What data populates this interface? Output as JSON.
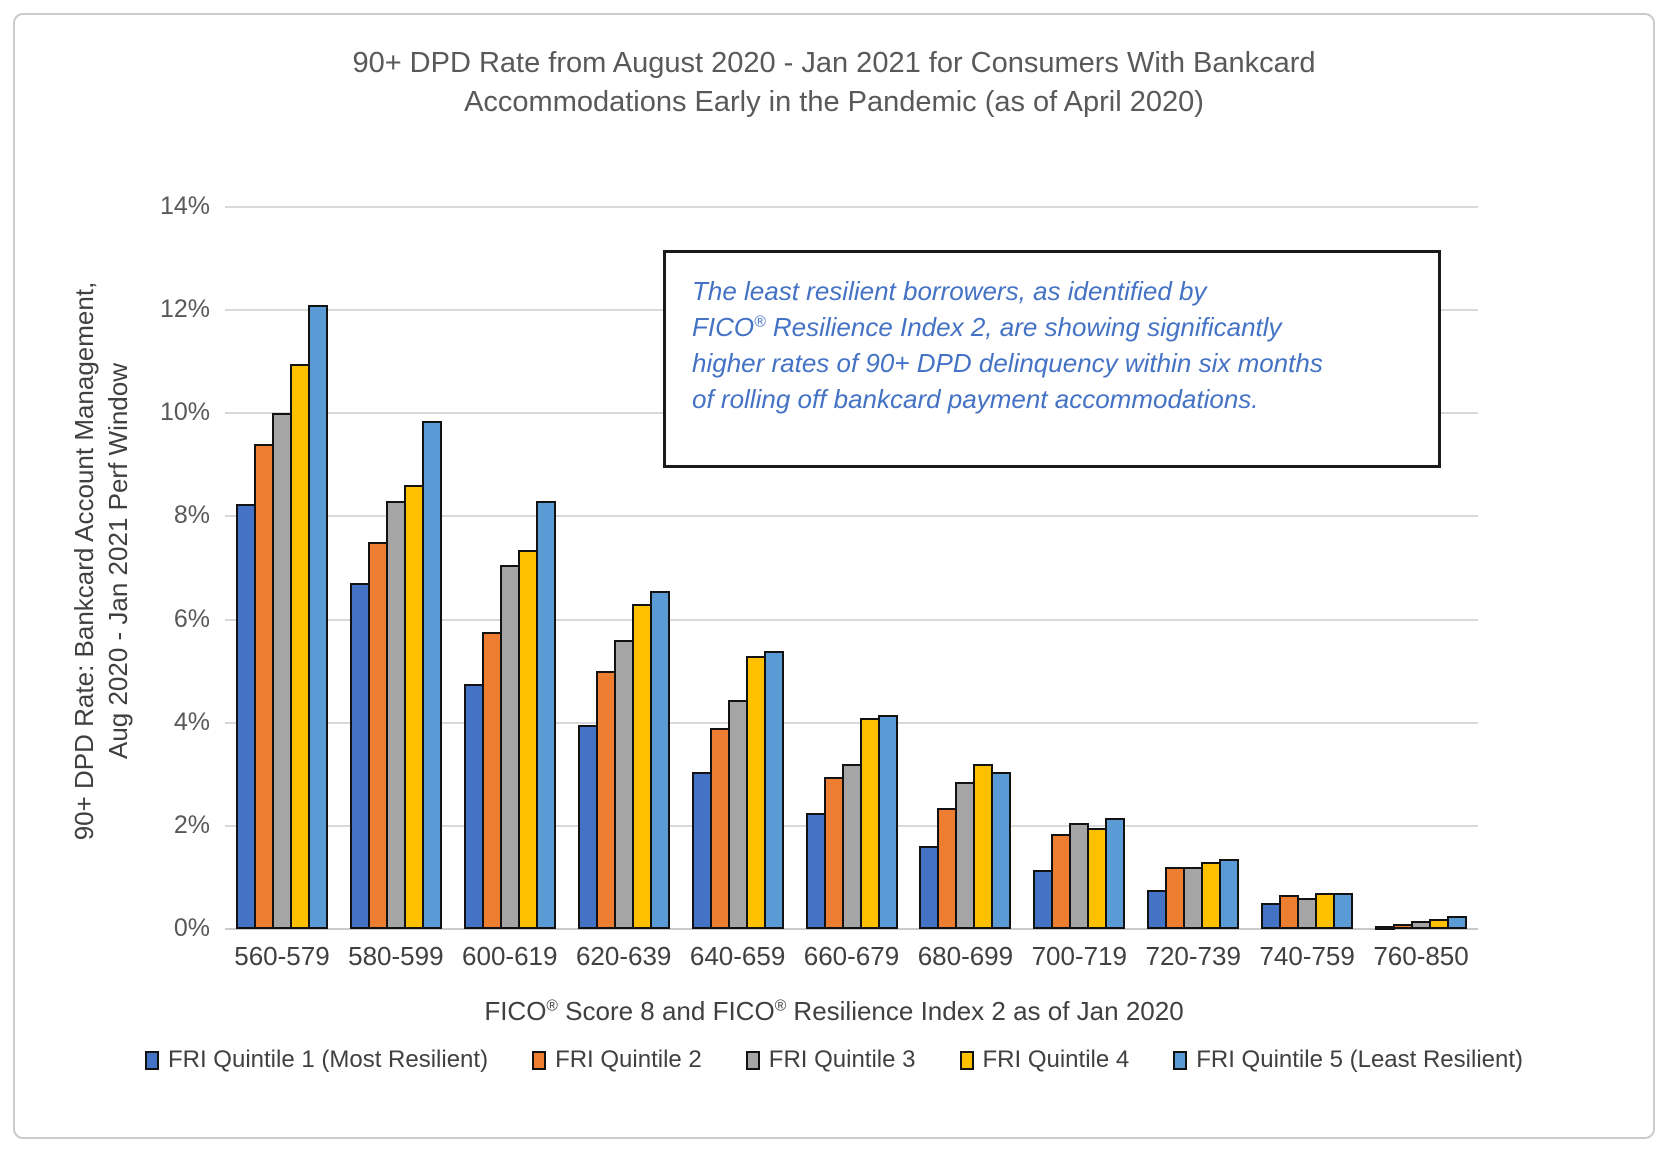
{
  "chart": {
    "title_lines": [
      "90+ DPD Rate from August 2020 - Jan 2021 for Consumers With Bankcard",
      "Accommodations Early in the Pandemic (as of April 2020)"
    ]
  },
  "chart_data": {
    "type": "bar",
    "title": "90+ DPD Rate from August 2020 - Jan 2021 for Consumers With Bankcard Accommodations Early in the Pandemic (as of April 2020)",
    "xlabel": "FICO® Score 8 and FICO® Resilience Index 2 as of Jan 2020",
    "ylabel": "90+ DPD Rate: Bankcard Account Management, Aug 2020 - Jan 2021 Perf Window",
    "ylabel_lines": [
      "90+ DPD Rate: Bankcard Account Management,",
      "Aug 2020 - Jan 2021 Perf Window"
    ],
    "categories": [
      "560-579",
      "580-599",
      "600-619",
      "620-639",
      "640-659",
      "660-679",
      "680-699",
      "700-719",
      "720-739",
      "740-759",
      "760-850"
    ],
    "series": [
      {
        "name": "FRI Quintile 1 (Most Resilient)",
        "color": "#4472C4",
        "values": [
          8.25,
          6.7,
          4.75,
          3.95,
          3.05,
          2.25,
          1.6,
          1.15,
          0.75,
          0.5,
          0.05
        ]
      },
      {
        "name": "FRI Quintile 2",
        "color": "#ED7D31",
        "values": [
          9.4,
          7.5,
          5.75,
          5.0,
          3.9,
          2.95,
          2.35,
          1.85,
          1.2,
          0.65,
          0.1
        ]
      },
      {
        "name": "FRI Quintile 3",
        "color": "#A5A5A5",
        "values": [
          10.0,
          8.3,
          7.05,
          5.6,
          4.45,
          3.2,
          2.85,
          2.05,
          1.2,
          0.6,
          0.15
        ]
      },
      {
        "name": "FRI Quintile 4",
        "color": "#FFC000",
        "values": [
          10.95,
          8.6,
          7.35,
          6.3,
          5.3,
          4.1,
          3.2,
          1.95,
          1.3,
          0.7,
          0.2
        ]
      },
      {
        "name": "FRI Quintile 5 (Least Resilient)",
        "color": "#5B9BD5",
        "values": [
          12.1,
          9.85,
          8.3,
          6.55,
          5.4,
          4.15,
          3.05,
          2.15,
          1.35,
          0.7,
          0.25
        ]
      }
    ],
    "ylim": [
      0,
      14
    ],
    "ytick_step": 2,
    "ytick_suffix": "%",
    "grid": true,
    "legend_position": "bottom",
    "annotation": {
      "color": "#4472C4",
      "lines": [
        "The least resilient borrowers, as identified by",
        "FICO® Resilience Index 2, are showing significantly",
        "higher rates of 90+ DPD delinquency within six months",
        "of rolling off bankcard payment accommodations."
      ]
    },
    "bar_border_color": "#121212",
    "gridline_color": "#d9d9d9",
    "title_color": "#595959",
    "axis_text_color": "#404040"
  }
}
